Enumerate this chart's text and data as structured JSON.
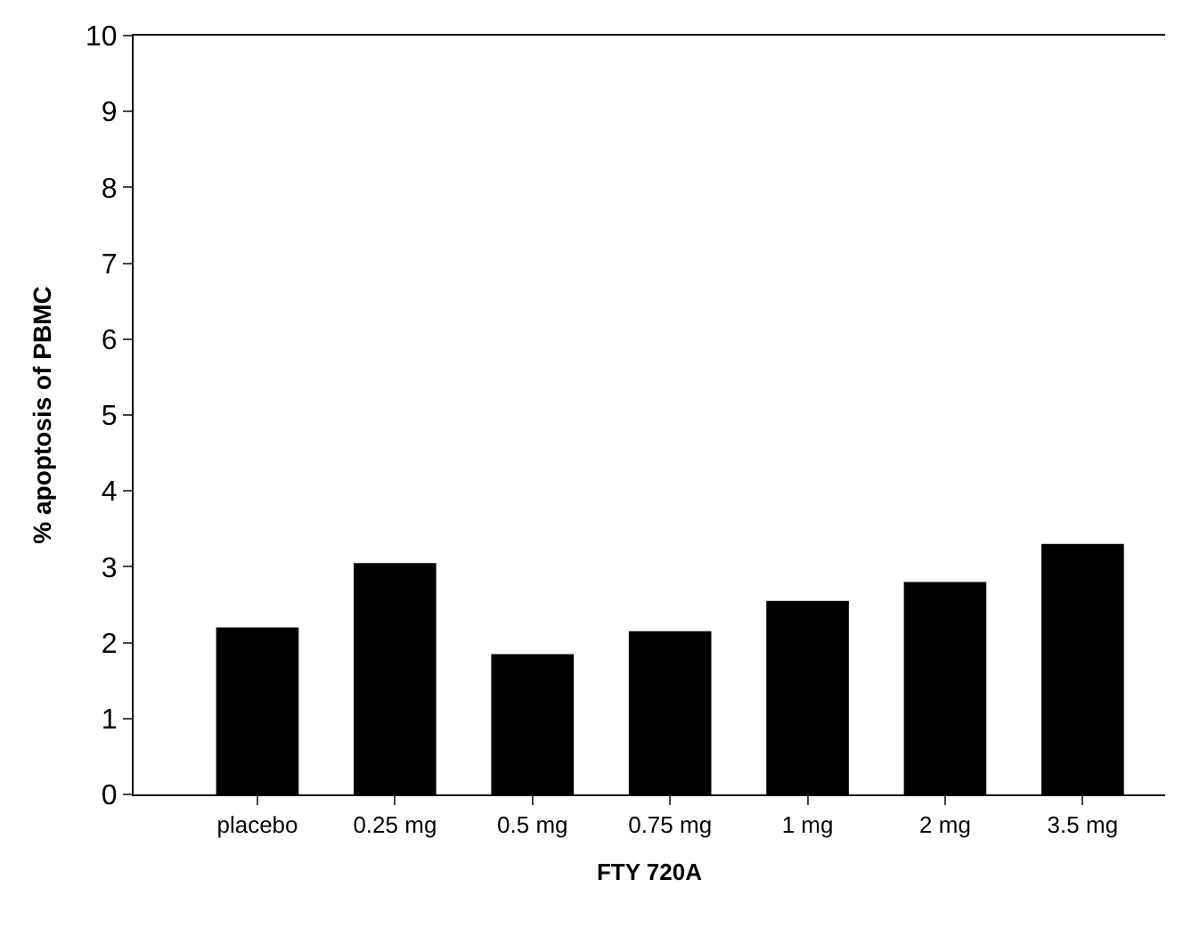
{
  "chart_data": {
    "type": "bar",
    "xlabel": "FTY 720A",
    "ylabel": "% apoptosis of PBMC",
    "categories": [
      "placebo",
      "0.25 mg",
      "0.5 mg",
      "0.75 mg",
      "1 mg",
      "2 mg",
      "3.5 mg"
    ],
    "values": [
      2.2,
      3.05,
      1.85,
      2.15,
      2.55,
      2.8,
      3.3
    ],
    "color": "#000000",
    "ylim": [
      0,
      10
    ],
    "yticks": [
      0,
      1,
      2,
      3,
      4,
      5,
      6,
      7,
      8,
      9,
      10
    ]
  }
}
